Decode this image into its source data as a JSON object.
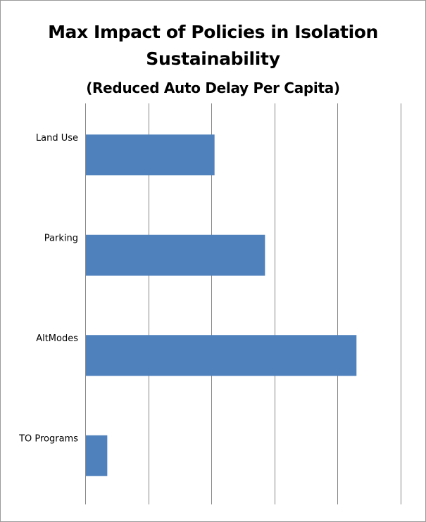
{
  "chart_data": {
    "type": "bar",
    "orientation": "horizontal",
    "title_lines": [
      "Max Impact of Policies in Isolation",
      "Sustainability",
      "(Reduced Auto Delay Per Capita)"
    ],
    "categories": [
      "Land Use",
      "Parking",
      "AltModes",
      "TO Programs"
    ],
    "values": [
      2.05,
      2.85,
      4.3,
      0.35
    ],
    "xlim": [
      0,
      5
    ],
    "gridlines": 6,
    "grid": true,
    "axis_labels_shown": false,
    "legend": "none",
    "bar_color": "#4F81BD",
    "grid_color": "#868686"
  }
}
